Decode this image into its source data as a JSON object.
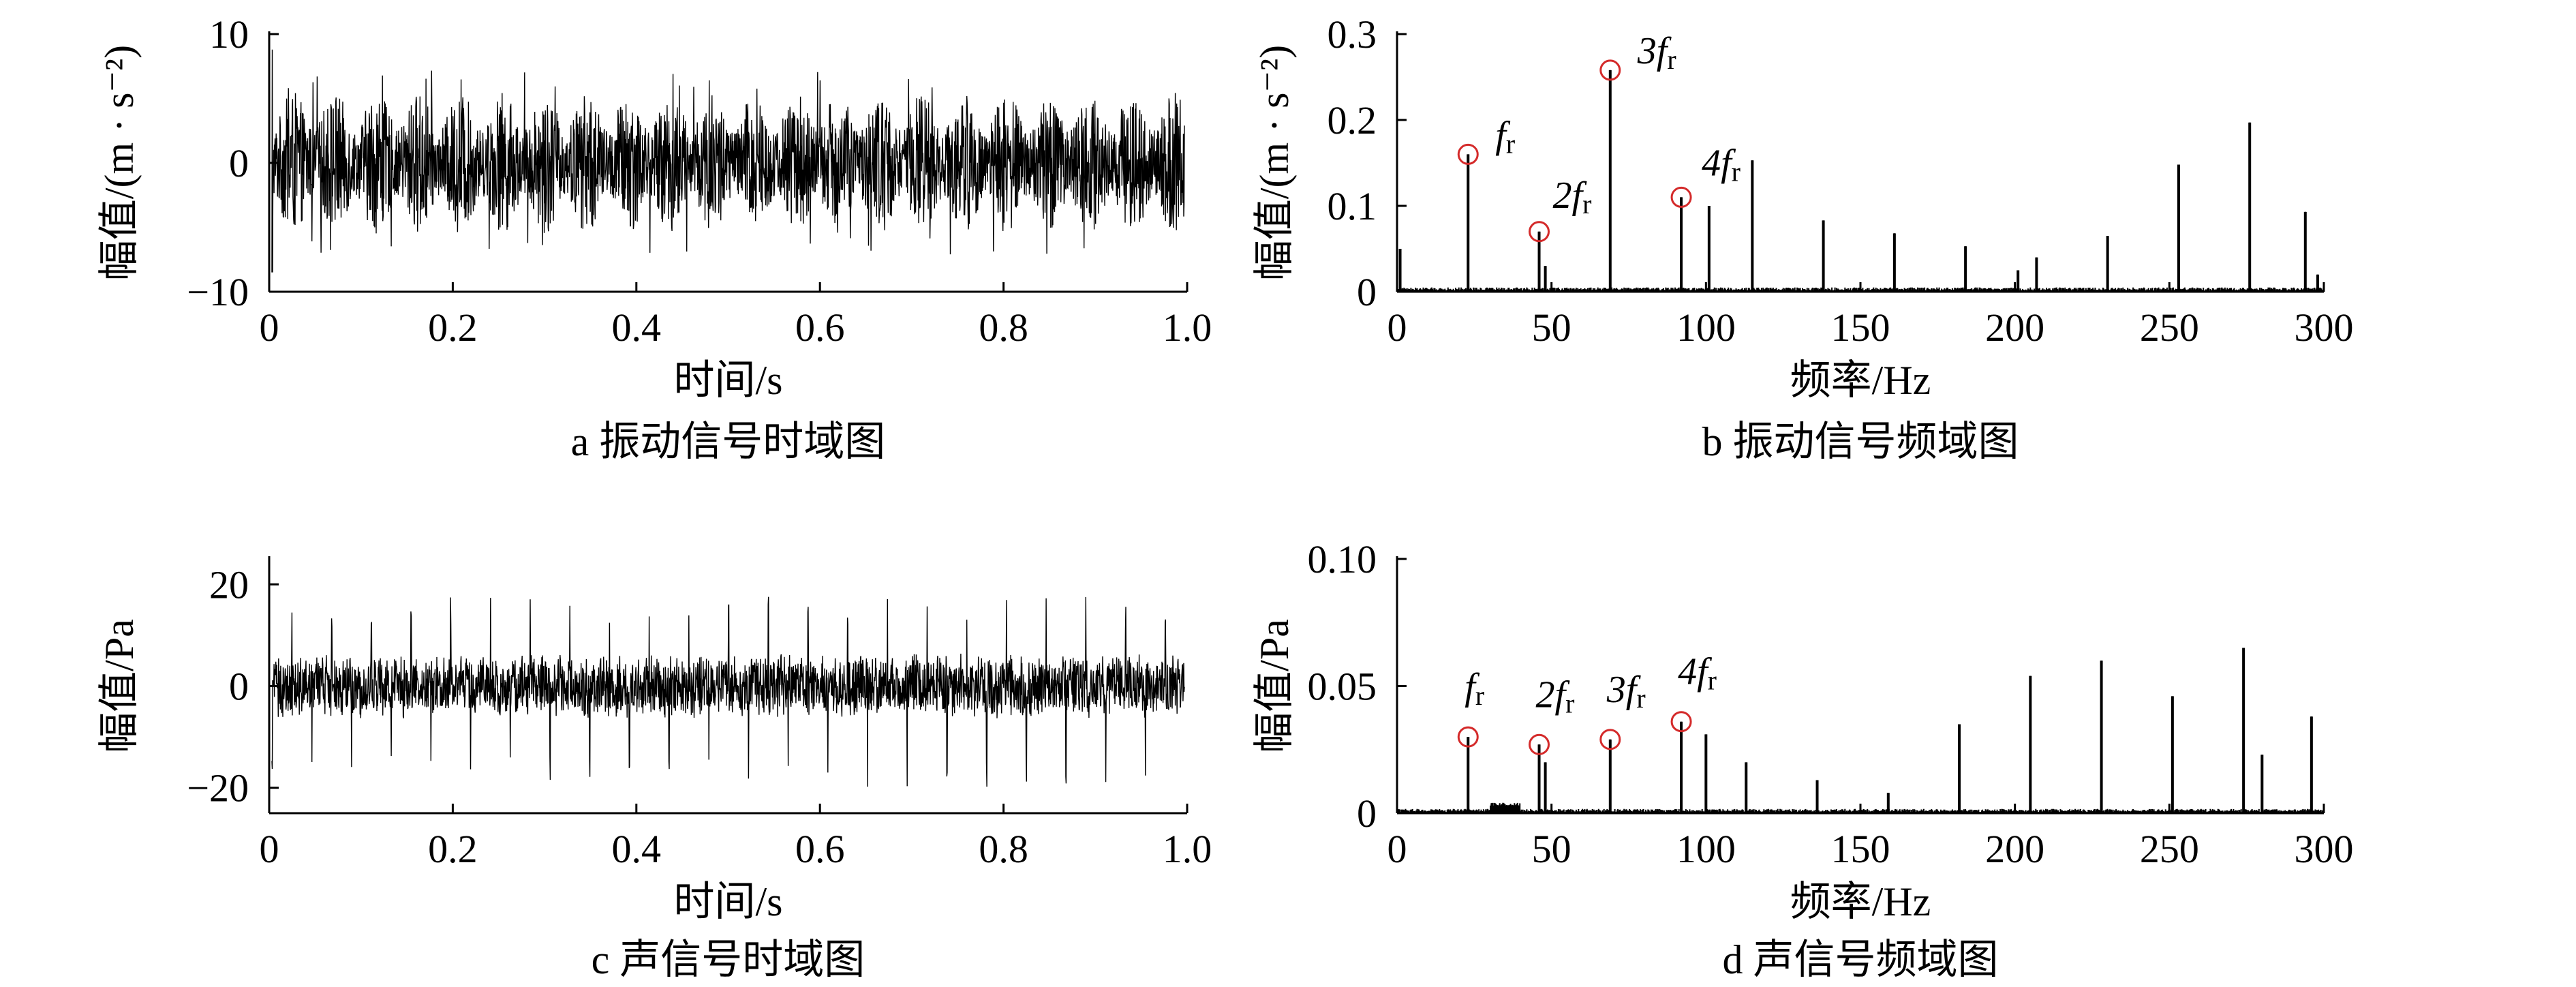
{
  "figure": {
    "panels": [
      {
        "id": "a",
        "caption": "a  振动信号时域图",
        "chart_data": {
          "type": "line",
          "xlabel": "时间/s",
          "ylabel": "幅值/(m · s⁻²)",
          "xlim": [
            0,
            1.0
          ],
          "ylim": [
            -10,
            10
          ],
          "xticks": [
            "0",
            "0.2",
            "0.4",
            "0.6",
            "0.8",
            "1.0"
          ],
          "yticks": [
            "−10",
            "0",
            "10"
          ],
          "signal": {
            "amplitude": 5.5,
            "peak": 7.2,
            "burst_period_s": 0.046
          },
          "grid": false,
          "line_color": "#000000"
        }
      },
      {
        "id": "b",
        "caption": "b  振动信号频域图",
        "chart_data": {
          "type": "line",
          "xlabel": "频率/Hz",
          "ylabel": "幅值/(m · s⁻²)",
          "xlim": [
            0,
            300
          ],
          "ylim": [
            0,
            0.3
          ],
          "xticks": [
            "0",
            "50",
            "100",
            "150",
            "200",
            "250",
            "300"
          ],
          "yticks": [
            "0",
            "0.1",
            "0.2",
            "0.3"
          ],
          "peaks": [
            {
              "x": 1,
              "y": 0.05
            },
            {
              "x": 23,
              "y": 0.16
            },
            {
              "x": 46,
              "y": 0.07
            },
            {
              "x": 48,
              "y": 0.03
            },
            {
              "x": 69,
              "y": 0.258
            },
            {
              "x": 92,
              "y": 0.11
            },
            {
              "x": 101,
              "y": 0.1
            },
            {
              "x": 115,
              "y": 0.153
            },
            {
              "x": 138,
              "y": 0.083
            },
            {
              "x": 161,
              "y": 0.068
            },
            {
              "x": 184,
              "y": 0.053
            },
            {
              "x": 201,
              "y": 0.025
            },
            {
              "x": 207,
              "y": 0.04
            },
            {
              "x": 230,
              "y": 0.065
            },
            {
              "x": 253,
              "y": 0.148
            },
            {
              "x": 276,
              "y": 0.197
            },
            {
              "x": 294,
              "y": 0.093
            },
            {
              "x": 298,
              "y": 0.02
            }
          ],
          "markers": [
            {
              "x": 23,
              "y": 0.16,
              "label": "f",
              "sub": "r"
            },
            {
              "x": 46,
              "y": 0.07,
              "label": "2f",
              "sub": "r"
            },
            {
              "x": 69,
              "y": 0.258,
              "label": "3f",
              "sub": "r"
            },
            {
              "x": 92,
              "y": 0.11,
              "label": "4f",
              "sub": "r"
            }
          ],
          "marker_color": "#d42a2a",
          "grid": false
        }
      },
      {
        "id": "c",
        "caption": "c  声信号时域图",
        "chart_data": {
          "type": "line",
          "xlabel": "时间/s",
          "ylabel": "幅值/Pa",
          "xlim": [
            0,
            1.0
          ],
          "ylim": [
            -25,
            25
          ],
          "xticks": [
            "0",
            "0.2",
            "0.4",
            "0.6",
            "0.8",
            "1.0"
          ],
          "yticks": [
            "−20",
            "0",
            "20"
          ],
          "signal": {
            "amplitude": 6.5,
            "spike": 18,
            "spike_period_s": 0.0435
          },
          "grid": false,
          "line_color": "#000000"
        }
      },
      {
        "id": "d",
        "caption": "d  声信号频域图",
        "chart_data": {
          "type": "line",
          "xlabel": "频率/Hz",
          "ylabel": "幅值/Pa",
          "xlim": [
            0,
            300
          ],
          "ylim": [
            0,
            0.1
          ],
          "xticks": [
            "0",
            "50",
            "100",
            "150",
            "200",
            "250",
            "300"
          ],
          "yticks": [
            "0",
            "0.05",
            "0.10"
          ],
          "peaks": [
            {
              "x": 23,
              "y": 0.03
            },
            {
              "x": 46,
              "y": 0.027
            },
            {
              "x": 48,
              "y": 0.02
            },
            {
              "x": 69,
              "y": 0.029
            },
            {
              "x": 92,
              "y": 0.036
            },
            {
              "x": 100,
              "y": 0.031
            },
            {
              "x": 113,
              "y": 0.02
            },
            {
              "x": 136,
              "y": 0.013
            },
            {
              "x": 159,
              "y": 0.008
            },
            {
              "x": 182,
              "y": 0.035
            },
            {
              "x": 205,
              "y": 0.054
            },
            {
              "x": 228,
              "y": 0.06
            },
            {
              "x": 251,
              "y": 0.046
            },
            {
              "x": 274,
              "y": 0.065
            },
            {
              "x": 280,
              "y": 0.023
            },
            {
              "x": 296,
              "y": 0.038
            }
          ],
          "markers": [
            {
              "x": 23,
              "y": 0.03,
              "label": "f",
              "sub": "r"
            },
            {
              "x": 46,
              "y": 0.027,
              "label": "2f",
              "sub": "r"
            },
            {
              "x": 69,
              "y": 0.029,
              "label": "3f",
              "sub": "r"
            },
            {
              "x": 92,
              "y": 0.036,
              "label": "4f",
              "sub": "r"
            }
          ],
          "marker_color": "#d42a2a",
          "grid": false
        }
      }
    ]
  }
}
